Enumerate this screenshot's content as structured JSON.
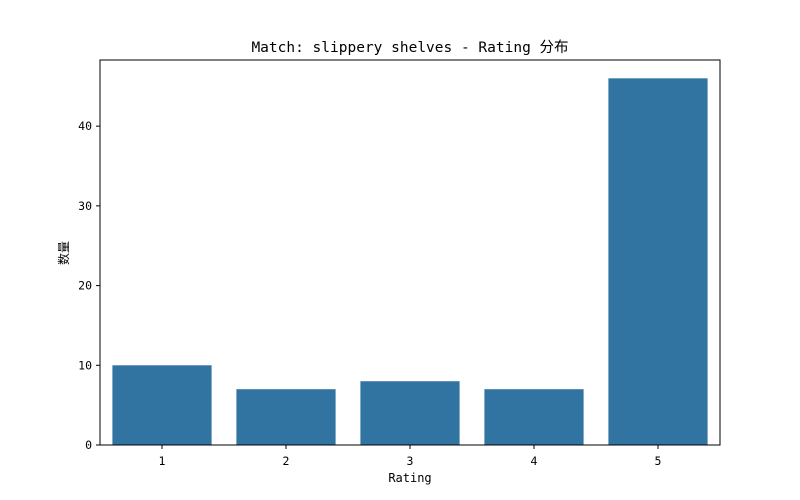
{
  "chart_data": {
    "type": "bar",
    "title": "Match: slippery shelves - Rating 分布",
    "xlabel": "Rating",
    "ylabel": "数量",
    "categories": [
      "1",
      "2",
      "3",
      "4",
      "5"
    ],
    "values": [
      10,
      7,
      8,
      7,
      46
    ],
    "ylim": [
      0,
      48.3
    ],
    "yticks": [
      0,
      10,
      20,
      30,
      40
    ],
    "bar_color": "#3274a1",
    "grid": false,
    "legend": "none"
  }
}
